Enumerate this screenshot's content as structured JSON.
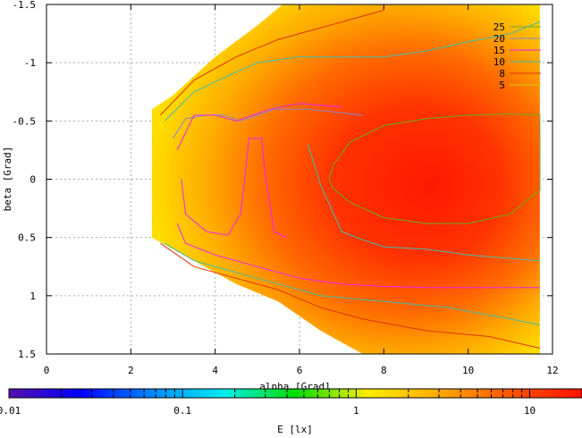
{
  "chart_data": {
    "type": "contour",
    "title": "",
    "xlabel": "alpha [Grad]",
    "ylabel": "beta [Grad]",
    "xlim": [
      0,
      12
    ],
    "ylim": [
      -1.5,
      1.5
    ],
    "y_reversed": true,
    "x_ticks": [
      "0",
      "2",
      "4",
      "6",
      "8",
      "10",
      "12"
    ],
    "x_tick_values": [
      0,
      2,
      4,
      6,
      8,
      10,
      12
    ],
    "y_ticks": [
      "-1.5",
      "-1",
      "-0.5",
      "0",
      "0.5",
      "1",
      "1.5"
    ],
    "y_tick_values": [
      -1.5,
      -1,
      -0.5,
      0,
      0.5,
      1,
      1.5
    ],
    "grid": true,
    "legend_position": "top-right",
    "region": [
      [
        2.5,
        -0.6
      ],
      [
        3.0,
        -0.72
      ],
      [
        4.0,
        -1.05
      ],
      [
        5.0,
        -1.32
      ],
      [
        5.6,
        -1.5
      ],
      [
        11.7,
        -1.5
      ],
      [
        11.7,
        1.5
      ],
      [
        7.5,
        1.5
      ],
      [
        6.5,
        1.3
      ],
      [
        5.5,
        1.05
      ],
      [
        4.5,
        0.9
      ],
      [
        3.5,
        0.7
      ],
      [
        2.5,
        0.5
      ]
    ],
    "contours": [
      {
        "name": "25",
        "color": "#66aa22",
        "points": [
          [
            6.7,
            0.0
          ],
          [
            6.8,
            -0.12
          ],
          [
            7.2,
            -0.32
          ],
          [
            8.0,
            -0.46
          ],
          [
            9.0,
            -0.52
          ],
          [
            10.0,
            -0.55
          ],
          [
            11.0,
            -0.56
          ],
          [
            11.7,
            -0.55
          ],
          [
            11.7,
            0.1
          ],
          [
            11.5,
            0.15
          ],
          [
            11.0,
            0.3
          ],
          [
            10.0,
            0.38
          ],
          [
            9.0,
            0.38
          ],
          [
            8.0,
            0.33
          ],
          [
            7.2,
            0.2
          ],
          [
            6.8,
            0.08
          ],
          [
            6.7,
            0.0
          ]
        ]
      },
      {
        "name": "20",
        "color": "#8888cc",
        "points": [
          [
            3.0,
            -0.35
          ],
          [
            3.3,
            -0.52
          ],
          [
            3.8,
            -0.55
          ],
          [
            4.2,
            -0.55
          ],
          [
            4.6,
            -0.5
          ],
          [
            5.4,
            -0.6
          ],
          [
            6.2,
            -0.6
          ],
          [
            7.0,
            -0.57
          ],
          [
            7.5,
            -0.55
          ]
        ]
      },
      {
        "name": "15",
        "color": "#ee22ee",
        "points": [
          [
            3.1,
            -0.25
          ],
          [
            3.5,
            -0.55
          ],
          [
            4.0,
            -0.55
          ],
          [
            4.5,
            -0.5
          ],
          [
            5.3,
            -0.6
          ],
          [
            6.0,
            -0.65
          ],
          [
            7.0,
            -0.62
          ]
        ]
      },
      {
        "name": "15-inner",
        "color": "#ee22ee",
        "points": [
          [
            3.2,
            0.0
          ],
          [
            3.3,
            0.3
          ],
          [
            3.8,
            0.45
          ],
          [
            4.3,
            0.48
          ],
          [
            4.6,
            0.3
          ],
          [
            4.7,
            0.0
          ],
          [
            4.8,
            -0.35
          ],
          [
            5.1,
            -0.35
          ],
          [
            5.2,
            0.0
          ],
          [
            5.4,
            0.45
          ],
          [
            5.7,
            0.5
          ]
        ]
      },
      {
        "name": "15b",
        "color": "#ee22ee",
        "points": [
          [
            3.1,
            0.38
          ],
          [
            3.3,
            0.55
          ],
          [
            4.0,
            0.65
          ],
          [
            5.0,
            0.75
          ],
          [
            6.0,
            0.85
          ],
          [
            7.0,
            0.9
          ],
          [
            8.0,
            0.92
          ],
          [
            9.0,
            0.93
          ],
          [
            10.0,
            0.93
          ],
          [
            11.7,
            0.93
          ]
        ]
      },
      {
        "name": "10",
        "color": "#44bbaa",
        "points": [
          [
            2.8,
            -0.5
          ],
          [
            3.5,
            -0.75
          ],
          [
            4.5,
            -0.92
          ],
          [
            5.0,
            -1.0
          ],
          [
            6.0,
            -1.05
          ],
          [
            7.0,
            -1.05
          ],
          [
            8.0,
            -1.05
          ],
          [
            9.0,
            -1.1
          ],
          [
            10.0,
            -1.18
          ],
          [
            11.0,
            -1.25
          ],
          [
            11.7,
            -1.35
          ]
        ]
      },
      {
        "name": "10-lower",
        "color": "#44bbaa",
        "points": [
          [
            2.8,
            0.55
          ],
          [
            3.5,
            0.7
          ],
          [
            4.5,
            0.8
          ],
          [
            5.5,
            0.9
          ],
          [
            6.5,
            1.0
          ],
          [
            8.0,
            1.05
          ],
          [
            9.5,
            1.1
          ],
          [
            11.0,
            1.2
          ],
          [
            11.7,
            1.25
          ]
        ]
      },
      {
        "name": "10-right",
        "color": "#44bbaa",
        "points": [
          [
            6.2,
            -0.3
          ],
          [
            6.5,
            0.05
          ],
          [
            7.0,
            0.45
          ],
          [
            7.5,
            0.52
          ],
          [
            8.0,
            0.58
          ],
          [
            9.0,
            0.6
          ],
          [
            10.0,
            0.65
          ],
          [
            11.0,
            0.68
          ],
          [
            11.7,
            0.7
          ]
        ]
      },
      {
        "name": "8",
        "color": "#dd3300",
        "points": [
          [
            2.7,
            -0.55
          ],
          [
            3.5,
            -0.85
          ],
          [
            4.5,
            -1.05
          ],
          [
            5.5,
            -1.2
          ],
          [
            6.5,
            -1.3
          ],
          [
            7.5,
            -1.4
          ],
          [
            8.0,
            -1.45
          ]
        ]
      },
      {
        "name": "8-lower",
        "color": "#dd3300",
        "points": [
          [
            2.7,
            0.55
          ],
          [
            3.5,
            0.75
          ],
          [
            4.5,
            0.85
          ],
          [
            5.5,
            0.95
          ],
          [
            6.5,
            1.1
          ],
          [
            7.5,
            1.2
          ],
          [
            9.0,
            1.3
          ],
          [
            10.5,
            1.35
          ],
          [
            11.7,
            1.45
          ]
        ]
      }
    ],
    "legend": [
      {
        "label": "25",
        "color": "#66aa22"
      },
      {
        "label": "20",
        "color": "#8888cc"
      },
      {
        "label": "15",
        "color": "#ee22ee"
      },
      {
        "label": "10",
        "color": "#44bbaa"
      },
      {
        "label": "8",
        "color": "#dd3300"
      },
      {
        "label": "5",
        "color": "#cccc00"
      }
    ],
    "colorbar": {
      "label": "E [lx]",
      "scale": "log",
      "range": [
        0.01,
        20
      ],
      "tick_labels": [
        "0.01",
        "0.1",
        "1",
        "10"
      ],
      "tick_values": [
        0.01,
        0.1,
        1,
        10
      ],
      "colors": [
        "#5511aa",
        "#0000ff",
        "#0088ff",
        "#00eeee",
        "#00dd00",
        "#ffee00",
        "#ffaa00",
        "#ff5500",
        "#ff1100"
      ]
    }
  }
}
